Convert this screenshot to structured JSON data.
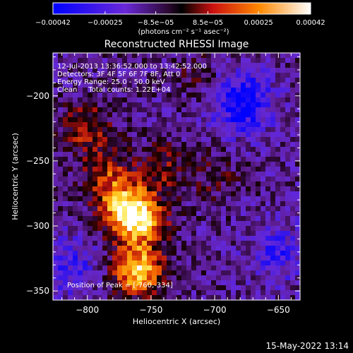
{
  "chart_data": {
    "type": "heatmap",
    "title": "Reconstructed RHESSI Image",
    "xlabel": "Heliocentric X (arcsec)",
    "ylabel": "Heliocentric Y (arcsec)",
    "xlim": [
      -827,
      -633
    ],
    "ylim": [
      -357,
      -167
    ],
    "xticks": [
      -800,
      -750,
      -700,
      -650
    ],
    "yticks": [
      -350,
      -300,
      -250,
      -200
    ],
    "colorbar": {
      "min": -0.00042,
      "max": 0.00042,
      "ticks": [
        -0.00042,
        -0.00025,
        -8.5e-05,
        8.5e-05,
        0.00025,
        0.00042
      ],
      "tick_labels": [
        "-0.00042",
        "-0.00025",
        "-8.5e-05",
        "8.5e-05",
        "0.00025",
        "0.00042"
      ],
      "units": "(photons cm⁻² s⁻¹ asec⁻²)"
    },
    "annotations": [
      "12-Jul-2013 13:36:52.000 to 13:42:52.000",
      "Detectors: 3F 4F 5F 6F 7F 8F, Att 0",
      "Energy Range: 25.0 - 50.0 keV",
      "Clean     Total counts: 1.22E+04"
    ],
    "peak_label": "Position of Peak = [-760,-334]",
    "peak": [
      -760,
      -334
    ],
    "bright_regions": [
      {
        "x": -770,
        "y": -288,
        "value": 0.00036
      },
      {
        "x": -757,
        "y": -295,
        "value": 0.0003
      },
      {
        "x": -785,
        "y": -262,
        "value": 0.00022
      },
      {
        "x": -800,
        "y": -225,
        "value": 0.0002
      },
      {
        "x": -742,
        "y": -255,
        "value": 0.00015
      },
      {
        "x": -760,
        "y": -334,
        "value": 0.00042
      },
      {
        "x": -700,
        "y": -262,
        "value": 0.0001
      },
      {
        "x": -713,
        "y": -185,
        "value": 8e-05
      }
    ],
    "dark_regions": [
      {
        "x": -678,
        "y": -205,
        "value": -0.0003
      },
      {
        "x": -812,
        "y": -330,
        "value": -0.00015
      },
      {
        "x": -650,
        "y": -320,
        "value": -0.00015
      }
    ]
  },
  "footer_timestamp": "15-May-2022 13:14"
}
